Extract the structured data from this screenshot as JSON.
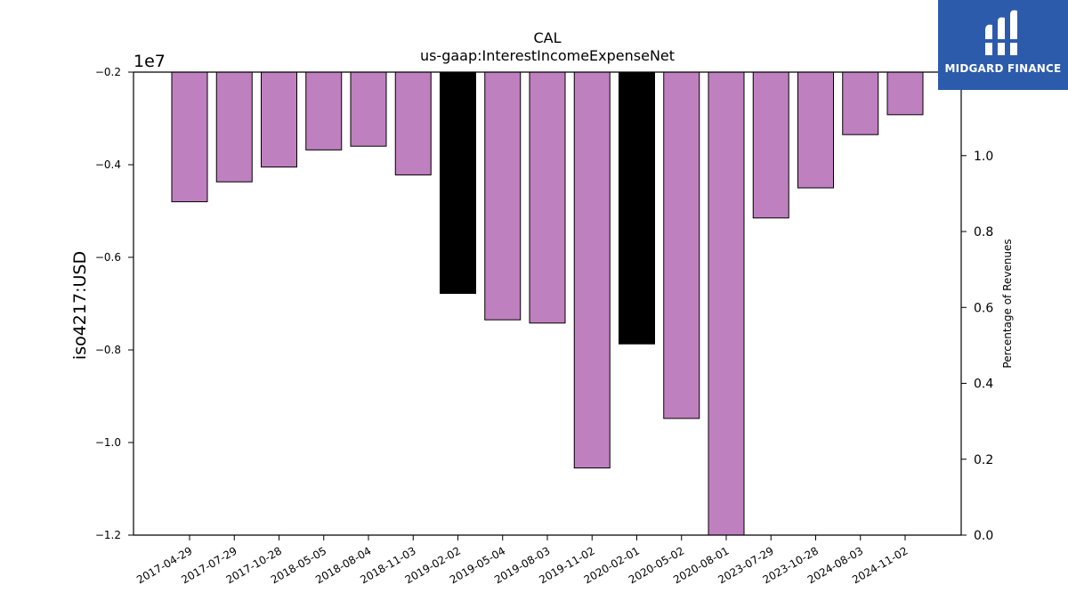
{
  "brand": {
    "name": "MIDGARD FINANCE",
    "bg_color": "#2d5bab"
  },
  "chart_data": {
    "type": "bar",
    "title": "CAL",
    "subtitle": "us-gaap:InterestIncomeExpenseNet",
    "ylabel": "iso4217:USD",
    "y2label": "Percentage of Revenues",
    "y_multiplier_label": "1e7",
    "ylim": [
      -1.2,
      -0.2
    ],
    "yticks": [
      "−0.2",
      "−0.4",
      "−0.6",
      "−0.8",
      "−1.0",
      "−1.2"
    ],
    "ytick_values": [
      -0.2,
      -0.4,
      -0.6,
      -0.8,
      -1.0,
      -1.2
    ],
    "y2lim": [
      0.0,
      1.22
    ],
    "y2ticks": [
      "0.0",
      "0.2",
      "0.4",
      "0.6",
      "0.8",
      "1.0"
    ],
    "y2tick_values": [
      0.0,
      0.2,
      0.4,
      0.6,
      0.8,
      1.0
    ],
    "categories": [
      "2017-04-29",
      "2017-07-29",
      "2017-10-28",
      "2018-05-05",
      "2018-08-04",
      "2018-11-03",
      "2019-02-02",
      "2019-05-04",
      "2019-08-03",
      "2019-11-02",
      "2020-02-01",
      "2020-05-02",
      "2020-08-01",
      "2023-07-29",
      "2023-10-28",
      "2024-08-03",
      "2024-11-02"
    ],
    "values": [
      -0.48,
      -0.437,
      -0.405,
      -0.368,
      -0.36,
      -0.422,
      -0.678,
      -0.735,
      -0.742,
      -1.055,
      -0.787,
      -0.948,
      -1.21,
      -0.515,
      -0.45,
      -0.335,
      -0.292
    ],
    "bar_colors": [
      "#bf80bf",
      "#bf80bf",
      "#bf80bf",
      "#bf80bf",
      "#bf80bf",
      "#bf80bf",
      "#000000",
      "#bf80bf",
      "#bf80bf",
      "#bf80bf",
      "#000000",
      "#bf80bf",
      "#bf80bf",
      "#bf80bf",
      "#bf80bf",
      "#bf80bf",
      "#bf80bf"
    ],
    "grid": false,
    "legend": "none"
  }
}
